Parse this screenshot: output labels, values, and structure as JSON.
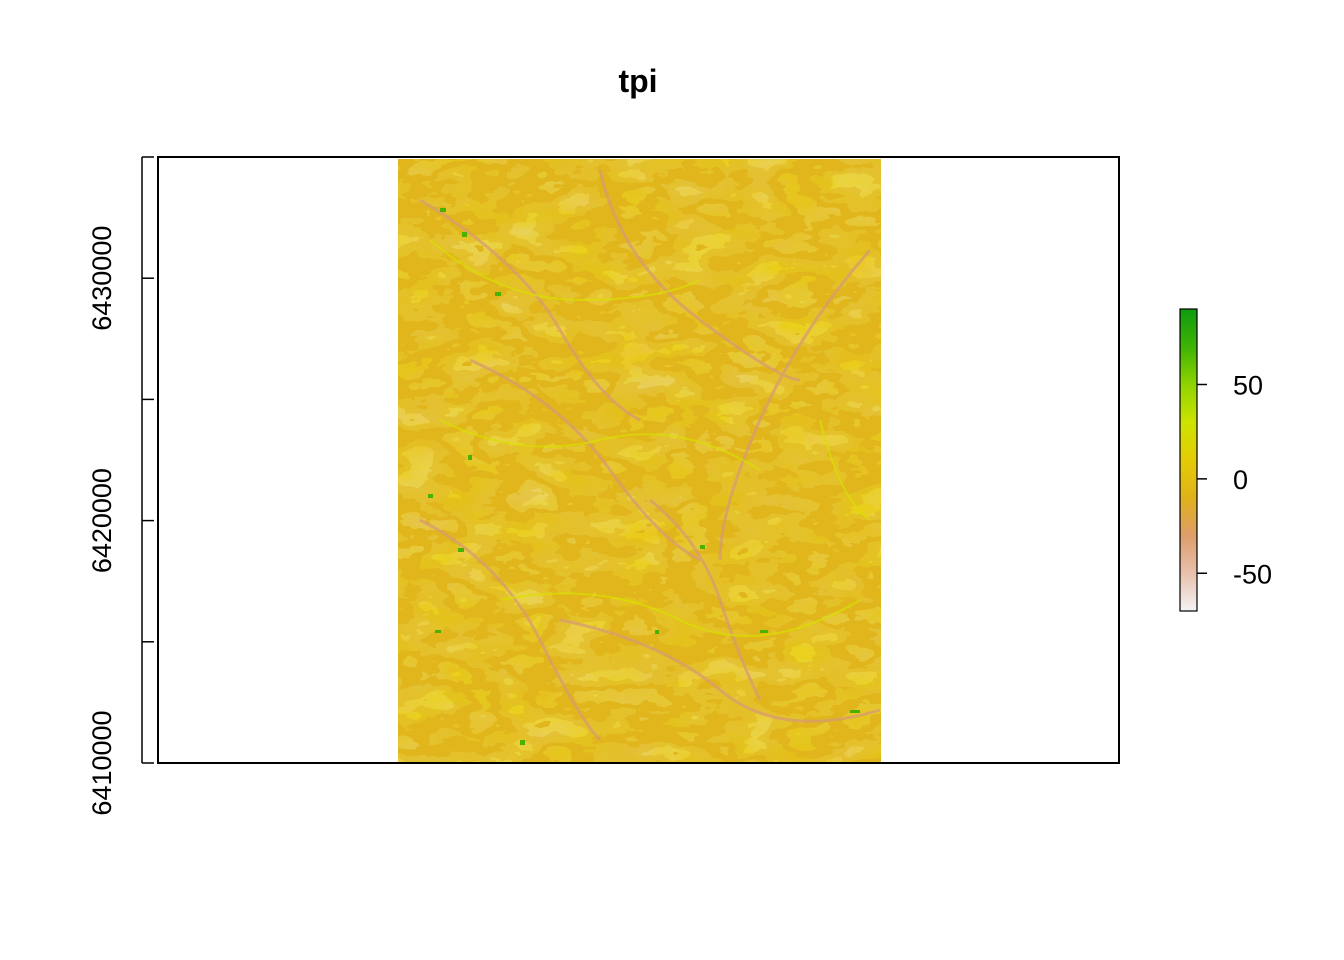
{
  "chart_data": {
    "type": "heatmap",
    "title": "tpi",
    "xlabel": "",
    "ylabel": "",
    "y_ticks": [
      6410000,
      6415000,
      6420000,
      6425000,
      6430000,
      6435000
    ],
    "y_tick_labels": [
      "6410000",
      "",
      "6420000",
      "",
      "6430000",
      ""
    ],
    "ylim": [
      6410000,
      6435000
    ],
    "raster_description": "Topographic position index raster of dissected terrain; values mostly near 0 with negative valley lines and positive ridges",
    "value_range": [
      -70,
      90
    ],
    "legend": {
      "placement": "right",
      "ticks": [
        50,
        0,
        -50
      ],
      "tick_labels": [
        "50",
        "0",
        "-50"
      ],
      "range": [
        -70,
        90
      ],
      "colors": [
        "#f4f4f4",
        "#e8c0ad",
        "#dd9d6a",
        "#e0b21a",
        "#e3cc06",
        "#cde300",
        "#8fd300",
        "#3eb304",
        "#0f9b0f"
      ]
    }
  }
}
